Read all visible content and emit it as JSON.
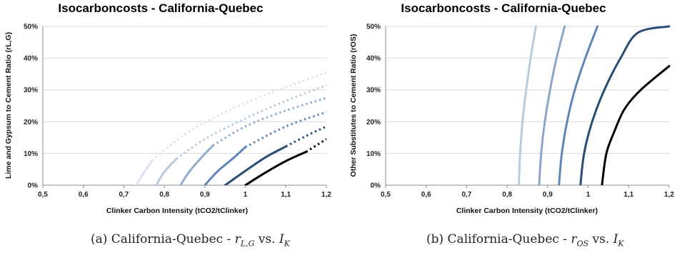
{
  "chart_data": [
    {
      "type": "line",
      "title": "Isocarboncosts - California-Quebec",
      "xlabel": "Clinker Carbon Intensity (tCO2/tClinker)",
      "ylabel": "Lime and Gypsum to Cement Ratio (rL,G)",
      "xlim": [
        0.5,
        1.2
      ],
      "ylim": [
        0,
        50
      ],
      "x_ticks": [
        "0,5",
        "0,6",
        "0,7",
        "0,8",
        "0,9",
        "1",
        "1,1",
        "1,2"
      ],
      "y_ticks": [
        "0%",
        "10%",
        "20%",
        "30%",
        "40%",
        "50%"
      ],
      "grid": "horizontal",
      "legend": "none",
      "series": [
        {
          "color": "#dbe3ee",
          "solid": [
            [
              0.73,
              0
            ],
            [
              0.75,
              4
            ],
            [
              0.77,
              7.8
            ]
          ],
          "dotted": [
            [
              0.77,
              7.8
            ],
            [
              0.85,
              16
            ],
            [
              0.95,
              23
            ],
            [
              1.05,
              28.5
            ],
            [
              1.2,
              35.5
            ]
          ]
        },
        {
          "color": "#b9cadd",
          "solid": [
            [
              0.78,
              0
            ],
            [
              0.8,
              4.2
            ],
            [
              0.83,
              8.3
            ]
          ],
          "dotted": [
            [
              0.83,
              8.3
            ],
            [
              0.9,
              14.5
            ],
            [
              1.0,
              21
            ],
            [
              1.1,
              26.5
            ],
            [
              1.2,
              31.5
            ]
          ]
        },
        {
          "color": "#93add0",
          "solid": [
            [
              0.84,
              0
            ],
            [
              0.86,
              4
            ],
            [
              0.89,
              8.5
            ],
            [
              0.92,
              12.5
            ]
          ],
          "dotted": [
            [
              0.92,
              12.5
            ],
            [
              1.0,
              18.5
            ],
            [
              1.1,
              23.5
            ],
            [
              1.2,
              27.5
            ]
          ]
        },
        {
          "color": "#5f86b8",
          "solid": [
            [
              0.9,
              0
            ],
            [
              0.93,
              4.2
            ],
            [
              0.97,
              8.5
            ],
            [
              1.0,
              12
            ]
          ],
          "dotted": [
            [
              1.0,
              12
            ],
            [
              1.1,
              18.5
            ],
            [
              1.2,
              23
            ]
          ]
        },
        {
          "color": "#284c74",
          "solid": [
            [
              0.95,
              0
            ],
            [
              1.0,
              4.5
            ],
            [
              1.05,
              8.8
            ],
            [
              1.1,
              12.2
            ]
          ],
          "dotted": [
            [
              1.1,
              12.2
            ],
            [
              1.15,
              15.5
            ],
            [
              1.2,
              18.5
            ]
          ]
        },
        {
          "color": "#000000",
          "solid": [
            [
              1.0,
              0
            ],
            [
              1.05,
              4
            ],
            [
              1.1,
              7.6
            ],
            [
              1.15,
              10.5
            ]
          ],
          "dotted": [
            [
              1.15,
              10.5
            ],
            [
              1.2,
              14.5
            ]
          ]
        }
      ]
    },
    {
      "type": "line",
      "title": "Isocarboncosts - California-Quebec",
      "xlabel": "Clinker Carbon Intensity (tCO2/tClinker)",
      "ylabel": "Other Substitutes to Cement Ratio (rOS)",
      "xlim": [
        0.5,
        1.2
      ],
      "ylim": [
        0,
        50
      ],
      "x_ticks": [
        "0,5",
        "0,6",
        "0,7",
        "0,8",
        "0,9",
        "1",
        "1,1",
        "1,2"
      ],
      "y_ticks": [
        "0%",
        "10%",
        "20%",
        "30%",
        "40%",
        "50%"
      ],
      "grid": "horizontal",
      "legend": "none",
      "series": [
        {
          "color": "#b9cadd",
          "points": [
            [
              0.829,
              0
            ],
            [
              0.832,
              10
            ],
            [
              0.838,
              20
            ],
            [
              0.847,
              30
            ],
            [
              0.858,
              40
            ],
            [
              0.871,
              50
            ]
          ]
        },
        {
          "color": "#8aa6cc",
          "points": [
            [
              0.879,
              0
            ],
            [
              0.884,
              10
            ],
            [
              0.893,
              20
            ],
            [
              0.906,
              30
            ],
            [
              0.922,
              40
            ],
            [
              0.942,
              50
            ]
          ]
        },
        {
          "color": "#5f86b8",
          "points": [
            [
              0.928,
              0
            ],
            [
              0.935,
              10
            ],
            [
              0.948,
              20
            ],
            [
              0.967,
              30
            ],
            [
              0.993,
              40
            ],
            [
              1.023,
              50
            ]
          ]
        },
        {
          "color": "#284c74",
          "points": [
            [
              0.981,
              0
            ],
            [
              0.99,
              10
            ],
            [
              1.01,
              20
            ],
            [
              1.04,
              30
            ],
            [
              1.08,
              40
            ],
            [
              1.123,
              48
            ],
            [
              1.2,
              50
            ]
          ]
        },
        {
          "color": "#000000",
          "points": [
            [
              1.034,
              0
            ],
            [
              1.045,
              10
            ],
            [
              1.065,
              17
            ],
            [
              1.09,
              24
            ],
            [
              1.13,
              30
            ],
            [
              1.2,
              37.5
            ]
          ]
        }
      ]
    }
  ],
  "captions": {
    "a_prefix": "(a) California-Quebec - ",
    "a_var1": "r",
    "a_sub1": "L,G",
    "a_mid": " vs. ",
    "a_var2": "I",
    "a_sub2": "K",
    "b_prefix": "(b) California-Quebec - ",
    "b_var1": "r",
    "b_sub1": "OS",
    "b_mid": " vs. ",
    "b_var2": "I",
    "b_sub2": "K"
  }
}
